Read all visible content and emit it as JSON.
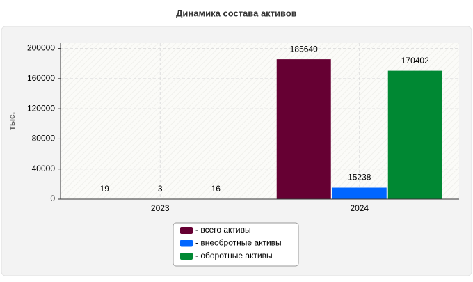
{
  "chart_data": {
    "type": "bar",
    "title": "Динамика состава активов",
    "y_label": "тыс.",
    "categories": [
      "2023",
      "2024"
    ],
    "series": [
      {
        "name": "- всего активы",
        "color": "#660033",
        "values": [
          19,
          185640
        ]
      },
      {
        "name": "- внеобротные активы",
        "color": "#0066ff",
        "values": [
          3,
          15238
        ]
      },
      {
        "name": "- оборотные активы",
        "color": "#008833",
        "values": [
          16,
          170402
        ]
      }
    ],
    "ylim": [
      0,
      207000
    ],
    "yticks": [
      0,
      40000,
      80000,
      120000,
      160000,
      200000
    ],
    "grid": true
  }
}
